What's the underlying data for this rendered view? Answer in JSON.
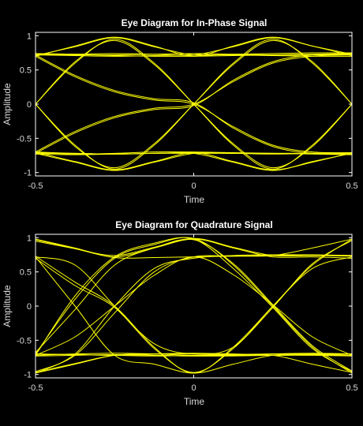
{
  "colors": {
    "background": "#000000",
    "axes": "#ffffff",
    "trace": "#ffff00",
    "text": "#d9d9d9"
  },
  "chart_data": [
    {
      "type": "line",
      "title": "Eye Diagram for In-Phase Signal",
      "xlabel": "Time",
      "ylabel": "Amplitude",
      "xlim": [
        -0.5,
        0.5
      ],
      "ylim": [
        -1.05,
        1.05
      ],
      "xticks": [
        -0.5,
        0,
        0.5
      ],
      "xtick_labels": [
        "-0.5",
        "0",
        "0.5"
      ],
      "yticks": [
        -1,
        -0.5,
        0,
        0.5,
        1
      ],
      "ytick_labels": [
        "-1",
        "-0.5",
        "0",
        "0.5",
        "1"
      ],
      "grid": false,
      "x": [
        -0.5,
        -0.375,
        -0.25,
        -0.125,
        0,
        0.125,
        0.25,
        0.375,
        0.5
      ],
      "series": [
        {
          "values": [
            0.74,
            0.73,
            0.71,
            0.7,
            0.7,
            0.71,
            0.72,
            0.73,
            0.74
          ]
        },
        {
          "values": [
            0.72,
            0.71,
            0.7,
            0.71,
            0.72,
            0.72,
            0.71,
            0.7,
            0.7
          ]
        },
        {
          "values": [
            0.73,
            0.72,
            0.72,
            0.73,
            0.74,
            0.73,
            0.72,
            0.72,
            0.73
          ]
        },
        {
          "values": [
            0.7,
            0.85,
            0.98,
            0.85,
            0.7,
            0.85,
            0.98,
            0.85,
            0.71
          ]
        },
        {
          "values": [
            0.71,
            0.84,
            0.97,
            0.84,
            0.72,
            0.73,
            0.74,
            0.75,
            0.75
          ]
        },
        {
          "values": [
            0.72,
            0.73,
            0.74,
            0.73,
            0.72,
            0.84,
            0.97,
            0.85,
            0.73
          ]
        },
        {
          "values": [
            0.0,
            0.62,
            0.93,
            0.58,
            0.0,
            -0.58,
            -0.93,
            -0.62,
            0.0
          ]
        },
        {
          "values": [
            0.0,
            0.6,
            0.95,
            0.6,
            0.0,
            -0.6,
            -0.95,
            -0.6,
            0.0
          ]
        },
        {
          "values": [
            0.0,
            -0.62,
            -0.93,
            -0.58,
            0.0,
            0.58,
            0.93,
            0.62,
            0.0
          ]
        },
        {
          "values": [
            0.0,
            -0.6,
            -0.95,
            -0.6,
            0.0,
            0.6,
            0.95,
            0.6,
            0.0
          ]
        },
        {
          "values": [
            0.72,
            0.42,
            0.2,
            0.08,
            0.02,
            -0.35,
            -0.62,
            -0.72,
            -0.73
          ]
        },
        {
          "values": [
            0.7,
            0.4,
            0.18,
            0.06,
            0.0,
            -0.33,
            -0.6,
            -0.7,
            -0.71
          ]
        },
        {
          "values": [
            -0.72,
            -0.42,
            -0.2,
            -0.08,
            -0.02,
            0.35,
            0.62,
            0.72,
            0.73
          ]
        },
        {
          "values": [
            -0.7,
            -0.4,
            -0.18,
            -0.06,
            0.0,
            0.33,
            0.6,
            0.7,
            0.72
          ]
        },
        {
          "values": [
            -0.7,
            -0.72,
            -0.73,
            -0.72,
            -0.71,
            -0.72,
            -0.73,
            -0.72,
            -0.71
          ]
        },
        {
          "values": [
            -0.71,
            -0.73,
            -0.72,
            -0.7,
            -0.7,
            -0.71,
            -0.72,
            -0.73,
            -0.74
          ]
        },
        {
          "values": [
            -0.72,
            -0.85,
            -0.97,
            -0.85,
            -0.72,
            -0.72,
            -0.72,
            -0.72,
            -0.72
          ]
        },
        {
          "values": [
            -0.72,
            -0.72,
            -0.73,
            -0.72,
            -0.72,
            -0.85,
            -0.97,
            -0.84,
            -0.72
          ]
        },
        {
          "values": [
            -0.7,
            -0.84,
            -0.96,
            -0.84,
            -0.71,
            -0.84,
            -0.96,
            -0.85,
            -0.71
          ]
        },
        {
          "values": [
            -0.73,
            -0.74,
            -0.73,
            -0.72,
            -0.72,
            -0.72,
            -0.72,
            -0.72,
            -0.72
          ]
        }
      ]
    },
    {
      "type": "line",
      "title": "Eye Diagram for Quadrature Signal",
      "xlabel": "Time",
      "ylabel": "Amplitude",
      "xlim": [
        -0.5,
        0.5
      ],
      "ylim": [
        -1.05,
        1.05
      ],
      "xticks": [
        -0.5,
        0,
        0.5
      ],
      "xtick_labels": [
        "-0.5",
        "0",
        "0.5"
      ],
      "yticks": [
        -1,
        -0.5,
        0,
        0.5,
        1
      ],
      "ytick_labels": [
        "-1",
        "-0.5",
        "0",
        "0.5",
        "1"
      ],
      "grid": false,
      "x": [
        -0.5,
        -0.375,
        -0.25,
        -0.125,
        0,
        0.125,
        0.25,
        0.375,
        0.5
      ],
      "series": [
        {
          "values": [
            0.98,
            0.85,
            0.72,
            0.85,
            0.98,
            0.85,
            0.72,
            0.72,
            0.7
          ]
        },
        {
          "values": [
            0.97,
            0.84,
            0.71,
            0.71,
            0.72,
            0.73,
            0.74,
            0.85,
            0.98
          ]
        },
        {
          "values": [
            0.95,
            0.84,
            0.74,
            0.86,
            0.99,
            0.86,
            0.74,
            0.74,
            0.73
          ]
        },
        {
          "values": [
            -0.7,
            0.1,
            0.7,
            0.9,
            0.99,
            0.6,
            0.0,
            -0.6,
            -0.98
          ]
        },
        {
          "values": [
            -0.72,
            0.15,
            0.72,
            0.92,
            0.98,
            0.55,
            -0.02,
            -0.62,
            -0.96
          ]
        },
        {
          "values": [
            -0.68,
            -0.05,
            0.6,
            0.85,
            0.97,
            0.62,
            0.02,
            -0.58,
            -0.95
          ]
        },
        {
          "values": [
            0.73,
            0.35,
            0.0,
            -0.6,
            -0.98,
            -0.6,
            0.0,
            0.6,
            0.98
          ]
        },
        {
          "values": [
            0.7,
            0.3,
            -0.02,
            -0.62,
            -0.97,
            -0.62,
            -0.02,
            0.62,
            0.96
          ]
        },
        {
          "values": [
            0.72,
            0.0,
            -0.72,
            -0.85,
            -0.98,
            -0.85,
            -0.72,
            -0.7,
            -0.7
          ]
        },
        {
          "values": [
            -0.98,
            -0.85,
            -0.72,
            -0.7,
            -0.7,
            -0.71,
            -0.72,
            -0.71,
            -0.7
          ]
        },
        {
          "values": [
            -0.97,
            -0.84,
            -0.72,
            -0.72,
            -0.73,
            -0.72,
            -0.72,
            -0.85,
            -0.97
          ]
        },
        {
          "values": [
            -0.72,
            -0.7,
            -0.69,
            -0.7,
            -0.72,
            -0.72,
            -0.7,
            -0.69,
            -0.7
          ]
        },
        {
          "values": [
            -0.7,
            -0.71,
            -0.72,
            -0.73,
            -0.72,
            -0.71,
            -0.7,
            -0.71,
            -0.72
          ]
        },
        {
          "values": [
            -0.98,
            -0.7,
            0.0,
            0.55,
            0.7,
            0.74,
            0.75,
            0.75,
            0.74
          ]
        },
        {
          "values": [
            -0.96,
            -0.72,
            -0.1,
            0.5,
            0.72,
            0.73,
            0.74,
            0.74,
            0.74
          ]
        },
        {
          "values": [
            -0.7,
            -0.71,
            -0.72,
            -0.7,
            -0.69,
            -0.7,
            -0.72,
            -0.71,
            -0.7
          ]
        },
        {
          "values": [
            -0.73,
            -0.72,
            -0.71,
            -0.72,
            -0.73,
            -0.73,
            -0.72,
            -0.72,
            -0.73
          ]
        },
        {
          "values": [
            0.72,
            0.6,
            0.0,
            -0.55,
            -0.7,
            -0.6,
            0.0,
            0.55,
            0.72
          ]
        },
        {
          "values": [
            -0.72,
            -0.45,
            0.0,
            0.45,
            0.72,
            0.46,
            0.02,
            -0.45,
            -0.72
          ]
        }
      ]
    }
  ]
}
